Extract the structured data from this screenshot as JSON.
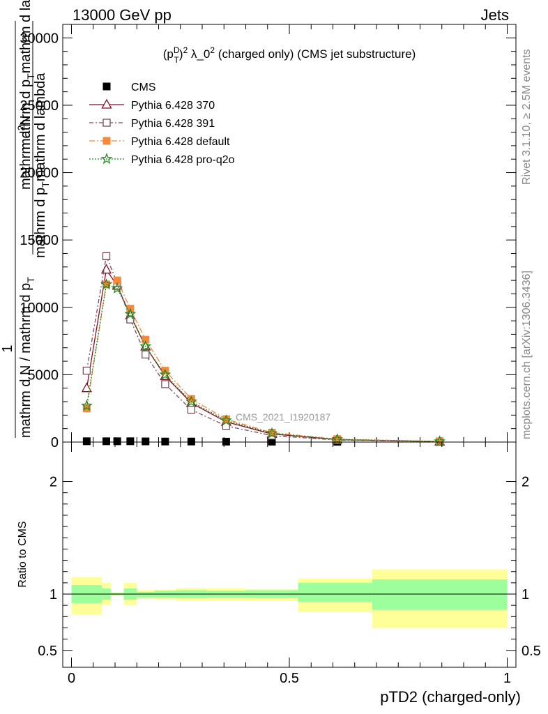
{
  "header": {
    "left": "13000 GeV pp",
    "right": "Jets"
  },
  "side_labels": {
    "rivet": "Rivet 3.1.10, ≥ 2.5M events",
    "mcplots": "mcplots.cern.ch [arXiv:1306.3436]"
  },
  "chart_data": [
    {
      "type": "line",
      "title_parts": {
        "pre": "(p",
        "sup": "D",
        "sub": "T",
        "mid": ")",
        "sup2": "2",
        "post": " λ_0",
        "sup3": "2",
        "tail": " (charged only) (CMS jet substructure)"
      },
      "ylabel_lines": [
        "1",
        "mathrm d N / mathrm d p_T mathrm d p_T mathrm d lambda",
        "mathrm d²N",
        "mathrm d p_T mathrm d lambda"
      ],
      "ylabel_frac": {
        "num1": "1",
        "den1": "mathrm d N / mathrm d p",
        "den1_sub": "T",
        "num2": "mathrm d",
        "num2_sup": "2",
        "num2_tail": "N",
        "den2": "mathrm d p",
        "den2_sub": "T",
        "den2_tail": "mathrm d lambda",
        "num_b": "mathrm d p",
        "num_b_sub": "T",
        "num_b_tail": "mathrm d lambda"
      },
      "xlim": [
        -0.02,
        1.02
      ],
      "ylim": [
        0,
        31000
      ],
      "yticks": [
        0,
        5000,
        10000,
        15000,
        20000,
        25000,
        30000
      ],
      "ytick_labels": [
        "0",
        "5000",
        "10000",
        "15000",
        "20000",
        "25000",
        "30000"
      ],
      "watermark": "CMS_2021_I1920187",
      "legend_placement": "top-left",
      "series": [
        {
          "name": "CMS",
          "color": "#000000",
          "marker": "square-filled",
          "x": [
            0.035,
            0.08,
            0.105,
            0.135,
            0.17,
            0.215,
            0.275,
            0.355,
            0.46,
            0.61,
            0.845
          ],
          "y": [
            60,
            60,
            60,
            60,
            50,
            40,
            40,
            30,
            30,
            20,
            10
          ]
        },
        {
          "name": "Pythia 6.428 370",
          "color": "#8b0a20",
          "marker": "triangle-open",
          "dash": "",
          "x": [
            0.035,
            0.08,
            0.105,
            0.135,
            0.17,
            0.215,
            0.275,
            0.355,
            0.46,
            0.61,
            0.845
          ],
          "y": [
            4000,
            12800,
            11600,
            9400,
            7100,
            4900,
            2900,
            1500,
            600,
            180,
            40
          ]
        },
        {
          "name": "Pythia 6.428 391",
          "color": "#7a4a5e",
          "marker": "square-open",
          "dash": "6,3,2,3",
          "x": [
            0.035,
            0.08,
            0.105,
            0.135,
            0.17,
            0.215,
            0.275,
            0.355,
            0.46,
            0.61,
            0.845
          ],
          "y": [
            5300,
            13800,
            11800,
            9100,
            6500,
            4300,
            2400,
            1200,
            480,
            150,
            30
          ]
        },
        {
          "name": "Pythia 6.428 default",
          "color": "#f58a3a",
          "marker": "square-filled",
          "dash": "8,3,2,3",
          "x": [
            0.035,
            0.08,
            0.105,
            0.135,
            0.17,
            0.215,
            0.275,
            0.355,
            0.46,
            0.61,
            0.845
          ],
          "y": [
            2500,
            11700,
            12000,
            9900,
            7600,
            5300,
            3200,
            1700,
            700,
            220,
            50
          ]
        },
        {
          "name": "Pythia 6.428 pro-q2o",
          "color": "#1f8a1f",
          "marker": "star-open",
          "dash": "2,2",
          "x": [
            0.035,
            0.08,
            0.105,
            0.135,
            0.17,
            0.215,
            0.275,
            0.355,
            0.46,
            0.61,
            0.845
          ],
          "y": [
            2700,
            11700,
            11400,
            9500,
            7100,
            5000,
            3000,
            1600,
            650,
            200,
            45
          ]
        }
      ]
    },
    {
      "type": "area",
      "ylabel": "Ratio to CMS",
      "xlabel": "pTD2 (charged-only)",
      "xlim": [
        -0.02,
        1.02
      ],
      "ylim": [
        0.35,
        2.35
      ],
      "yticks": [
        0.5,
        1,
        2
      ],
      "ytick_labels": [
        "0.5",
        "1",
        "2"
      ],
      "xticks": [
        0,
        0.5,
        1
      ],
      "xtick_labels": [
        "0",
        "0.5",
        "1"
      ],
      "bands": [
        {
          "x0": 0.0,
          "x1": 0.07,
          "stat_lo": 0.92,
          "stat_hi": 1.08,
          "tot_lo": 0.82,
          "tot_hi": 1.15
        },
        {
          "x0": 0.07,
          "x1": 0.09,
          "stat_lo": 0.95,
          "stat_hi": 1.05,
          "tot_lo": 0.9,
          "tot_hi": 1.1
        },
        {
          "x0": 0.09,
          "x1": 0.12,
          "stat_lo": 0.99,
          "stat_hi": 1.01,
          "tot_lo": 0.985,
          "tot_hi": 1.015
        },
        {
          "x0": 0.12,
          "x1": 0.15,
          "stat_lo": 0.95,
          "stat_hi": 1.05,
          "tot_lo": 0.9,
          "tot_hi": 1.1
        },
        {
          "x0": 0.15,
          "x1": 0.19,
          "stat_lo": 0.97,
          "stat_hi": 1.02,
          "tot_lo": 0.96,
          "tot_hi": 1.035
        },
        {
          "x0": 0.19,
          "x1": 0.24,
          "stat_lo": 0.97,
          "stat_hi": 1.03,
          "tot_lo": 0.95,
          "tot_hi": 1.04
        },
        {
          "x0": 0.24,
          "x1": 0.31,
          "stat_lo": 0.965,
          "stat_hi": 1.035,
          "tot_lo": 0.94,
          "tot_hi": 1.055
        },
        {
          "x0": 0.31,
          "x1": 0.4,
          "stat_lo": 0.97,
          "stat_hi": 1.03,
          "tot_lo": 0.945,
          "tot_hi": 1.05
        },
        {
          "x0": 0.4,
          "x1": 0.52,
          "stat_lo": 0.965,
          "stat_hi": 1.035,
          "tot_lo": 0.94,
          "tot_hi": 1.045
        },
        {
          "x0": 0.52,
          "x1": 0.69,
          "stat_lo": 0.93,
          "stat_hi": 1.1,
          "tot_lo": 0.84,
          "tot_hi": 1.14
        },
        {
          "x0": 0.69,
          "x1": 1.0,
          "stat_lo": 0.86,
          "stat_hi": 1.13,
          "tot_lo": 0.7,
          "tot_hi": 1.22
        }
      ],
      "stat_color": "#9cff9c",
      "tot_color": "#ffff99"
    }
  ]
}
